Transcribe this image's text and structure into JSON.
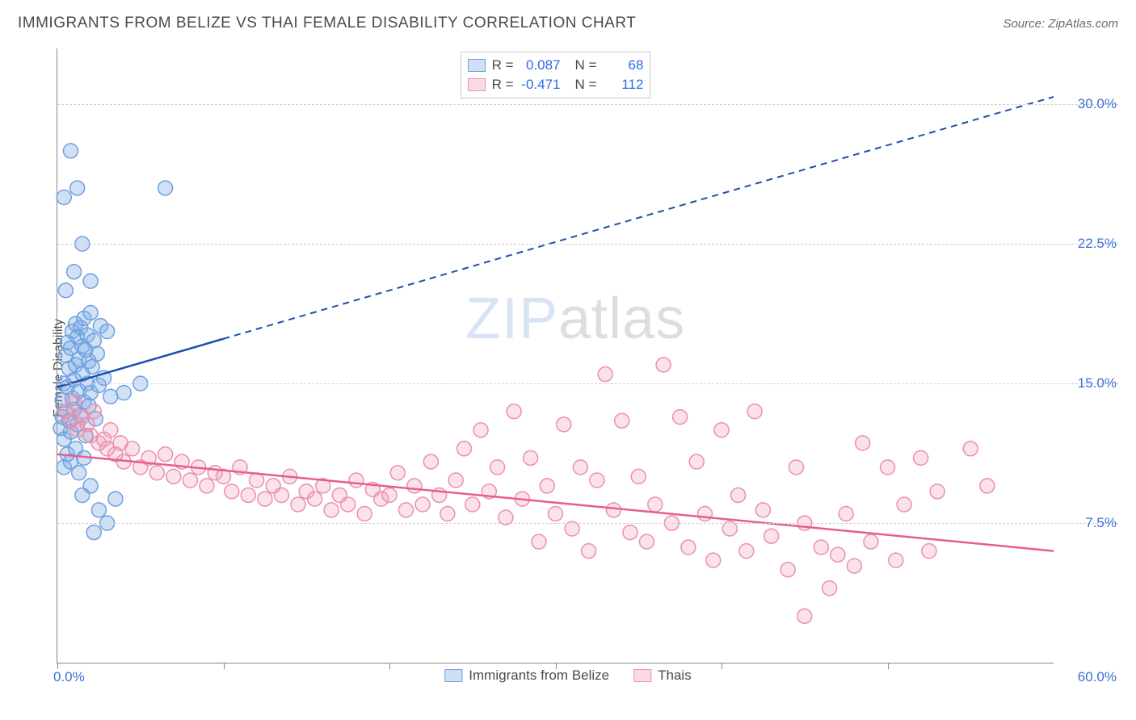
{
  "header": {
    "title": "IMMIGRANTS FROM BELIZE VS THAI FEMALE DISABILITY CORRELATION CHART",
    "source": "Source: ZipAtlas.com"
  },
  "chart": {
    "type": "scatter",
    "ylabel": "Female Disability",
    "xlim": [
      0,
      60
    ],
    "ylim": [
      0,
      33
    ],
    "xtick_positions": [
      0,
      10,
      20,
      30,
      40,
      50
    ],
    "ytick_values": [
      7.5,
      15.0,
      22.5,
      30.0
    ],
    "ytick_labels": [
      "7.5%",
      "15.0%",
      "22.5%",
      "30.0%"
    ],
    "xlim_labels": {
      "min": "0.0%",
      "max": "60.0%"
    },
    "background_color": "#ffffff",
    "grid_color": "#d0d0d0",
    "axis_color": "#888888",
    "marker_radius": 9,
    "marker_stroke_width": 1.5,
    "watermark": {
      "part1": "ZIP",
      "part2": "atlas"
    },
    "series": [
      {
        "name": "Immigrants from Belize",
        "color_fill": "rgba(120,170,230,0.35)",
        "color_stroke": "#6fa0dd",
        "swatch_fill": "#cfe0f5",
        "swatch_border": "#6fa0dd",
        "r_label": "R =",
        "r_value": "0.087",
        "n_label": "N =",
        "n_value": "68",
        "trend": {
          "p1": [
            0,
            14.8
          ],
          "p2": [
            10,
            17.4
          ],
          "proj_end": [
            60,
            30.4
          ],
          "color": "#1f4fb0",
          "line_width": 2.5,
          "dash": "8,6"
        },
        "points": [
          [
            0.2,
            12.6
          ],
          [
            0.3,
            13.2
          ],
          [
            0.3,
            14.1
          ],
          [
            0.4,
            12.0
          ],
          [
            0.4,
            15.0
          ],
          [
            0.5,
            13.5
          ],
          [
            0.5,
            16.5
          ],
          [
            0.6,
            14.8
          ],
          [
            0.6,
            17.2
          ],
          [
            0.7,
            13.0
          ],
          [
            0.7,
            15.8
          ],
          [
            0.8,
            12.4
          ],
          [
            0.8,
            16.9
          ],
          [
            0.9,
            14.2
          ],
          [
            0.9,
            17.8
          ],
          [
            1.0,
            13.6
          ],
          [
            1.0,
            15.2
          ],
          [
            1.1,
            16.0
          ],
          [
            1.1,
            18.2
          ],
          [
            1.2,
            12.8
          ],
          [
            1.2,
            17.5
          ],
          [
            1.3,
            14.6
          ],
          [
            1.3,
            16.3
          ],
          [
            1.4,
            18.0
          ],
          [
            1.4,
            13.3
          ],
          [
            1.5,
            15.5
          ],
          [
            1.5,
            17.0
          ],
          [
            1.6,
            14.0
          ],
          [
            1.6,
            18.5
          ],
          [
            1.7,
            12.2
          ],
          [
            1.7,
            16.8
          ],
          [
            1.8,
            15.0
          ],
          [
            1.8,
            17.6
          ],
          [
            1.9,
            13.8
          ],
          [
            1.9,
            16.2
          ],
          [
            2.0,
            14.5
          ],
          [
            2.0,
            18.8
          ],
          [
            2.1,
            15.9
          ],
          [
            2.2,
            17.3
          ],
          [
            2.3,
            13.1
          ],
          [
            2.4,
            16.6
          ],
          [
            2.5,
            14.9
          ],
          [
            2.6,
            18.1
          ],
          [
            2.8,
            15.3
          ],
          [
            3.0,
            17.8
          ],
          [
            3.2,
            14.3
          ],
          [
            0.4,
            10.5
          ],
          [
            0.6,
            11.2
          ],
          [
            0.8,
            10.8
          ],
          [
            1.1,
            11.5
          ],
          [
            1.3,
            10.2
          ],
          [
            1.6,
            11.0
          ],
          [
            2.0,
            9.5
          ],
          [
            2.5,
            8.2
          ],
          [
            3.0,
            7.5
          ],
          [
            3.5,
            8.8
          ],
          [
            1.5,
            9.0
          ],
          [
            2.2,
            7.0
          ],
          [
            0.5,
            20.0
          ],
          [
            1.0,
            21.0
          ],
          [
            1.5,
            22.5
          ],
          [
            2.0,
            20.5
          ],
          [
            0.4,
            25.0
          ],
          [
            0.8,
            27.5
          ],
          [
            1.2,
            25.5
          ],
          [
            4.0,
            14.5
          ],
          [
            5.0,
            15.0
          ],
          [
            6.5,
            25.5
          ]
        ]
      },
      {
        "name": "Thais",
        "color_fill": "rgba(240,150,175,0.28)",
        "color_stroke": "#eb8fb0",
        "swatch_fill": "#fadbe4",
        "swatch_border": "#eb8fb0",
        "r_label": "R =",
        "r_value": "-0.471",
        "n_label": "N =",
        "n_value": "112",
        "trend": {
          "p1": [
            0,
            11.2
          ],
          "p2": [
            60,
            6.0
          ],
          "proj_end": null,
          "color": "#e85d8f",
          "line_width": 2.5,
          "dash": null
        },
        "points": [
          [
            0.5,
            13.5
          ],
          [
            0.8,
            13.0
          ],
          [
            1.0,
            14.0
          ],
          [
            1.2,
            12.5
          ],
          [
            1.5,
            13.2
          ],
          [
            1.8,
            12.8
          ],
          [
            2.0,
            12.2
          ],
          [
            2.2,
            13.5
          ],
          [
            2.5,
            11.8
          ],
          [
            2.8,
            12.0
          ],
          [
            3.0,
            11.5
          ],
          [
            3.2,
            12.5
          ],
          [
            3.5,
            11.2
          ],
          [
            3.8,
            11.8
          ],
          [
            4.0,
            10.8
          ],
          [
            4.5,
            11.5
          ],
          [
            5.0,
            10.5
          ],
          [
            5.5,
            11.0
          ],
          [
            6.0,
            10.2
          ],
          [
            6.5,
            11.2
          ],
          [
            7.0,
            10.0
          ],
          [
            7.5,
            10.8
          ],
          [
            8.0,
            9.8
          ],
          [
            8.5,
            10.5
          ],
          [
            9.0,
            9.5
          ],
          [
            9.5,
            10.2
          ],
          [
            10.0,
            10.0
          ],
          [
            10.5,
            9.2
          ],
          [
            11.0,
            10.5
          ],
          [
            11.5,
            9.0
          ],
          [
            12.0,
            9.8
          ],
          [
            12.5,
            8.8
          ],
          [
            13.0,
            9.5
          ],
          [
            13.5,
            9.0
          ],
          [
            14.0,
            10.0
          ],
          [
            14.5,
            8.5
          ],
          [
            15.0,
            9.2
          ],
          [
            15.5,
            8.8
          ],
          [
            16.0,
            9.5
          ],
          [
            16.5,
            8.2
          ],
          [
            17.0,
            9.0
          ],
          [
            17.5,
            8.5
          ],
          [
            18.0,
            9.8
          ],
          [
            18.5,
            8.0
          ],
          [
            19.0,
            9.3
          ],
          [
            19.5,
            8.8
          ],
          [
            20.0,
            9.0
          ],
          [
            20.5,
            10.2
          ],
          [
            21.0,
            8.2
          ],
          [
            21.5,
            9.5
          ],
          [
            22.0,
            8.5
          ],
          [
            22.5,
            10.8
          ],
          [
            23.0,
            9.0
          ],
          [
            23.5,
            8.0
          ],
          [
            24.0,
            9.8
          ],
          [
            24.5,
            11.5
          ],
          [
            25.0,
            8.5
          ],
          [
            25.5,
            12.5
          ],
          [
            26.0,
            9.2
          ],
          [
            26.5,
            10.5
          ],
          [
            27.0,
            7.8
          ],
          [
            27.5,
            13.5
          ],
          [
            28.0,
            8.8
          ],
          [
            28.5,
            11.0
          ],
          [
            29.0,
            6.5
          ],
          [
            29.5,
            9.5
          ],
          [
            30.0,
            8.0
          ],
          [
            30.5,
            12.8
          ],
          [
            31.0,
            7.2
          ],
          [
            31.5,
            10.5
          ],
          [
            32.0,
            6.0
          ],
          [
            32.5,
            9.8
          ],
          [
            33.0,
            15.5
          ],
          [
            33.5,
            8.2
          ],
          [
            34.0,
            13.0
          ],
          [
            34.5,
            7.0
          ],
          [
            35.0,
            10.0
          ],
          [
            35.5,
            6.5
          ],
          [
            36.0,
            8.5
          ],
          [
            36.5,
            16.0
          ],
          [
            37.0,
            7.5
          ],
          [
            37.5,
            13.2
          ],
          [
            38.0,
            6.2
          ],
          [
            38.5,
            10.8
          ],
          [
            39.0,
            8.0
          ],
          [
            39.5,
            5.5
          ],
          [
            40.0,
            12.5
          ],
          [
            40.5,
            7.2
          ],
          [
            41.0,
            9.0
          ],
          [
            41.5,
            6.0
          ],
          [
            42.0,
            13.5
          ],
          [
            42.5,
            8.2
          ],
          [
            43.0,
            6.8
          ],
          [
            44.0,
            5.0
          ],
          [
            44.5,
            10.5
          ],
          [
            45.0,
            7.5
          ],
          [
            46.0,
            6.2
          ],
          [
            47.0,
            5.8
          ],
          [
            47.5,
            8.0
          ],
          [
            48.0,
            5.2
          ],
          [
            48.5,
            11.8
          ],
          [
            49.0,
            6.5
          ],
          [
            50.0,
            10.5
          ],
          [
            50.5,
            5.5
          ],
          [
            51.0,
            8.5
          ],
          [
            52.0,
            11.0
          ],
          [
            52.5,
            6.0
          ],
          [
            53.0,
            9.2
          ],
          [
            55.0,
            11.5
          ],
          [
            56.0,
            9.5
          ],
          [
            45.0,
            2.5
          ],
          [
            46.5,
            4.0
          ]
        ]
      }
    ],
    "bottom_legend": [
      {
        "label": "Immigrants from Belize",
        "series_idx": 0
      },
      {
        "label": "Thais",
        "series_idx": 1
      }
    ]
  }
}
